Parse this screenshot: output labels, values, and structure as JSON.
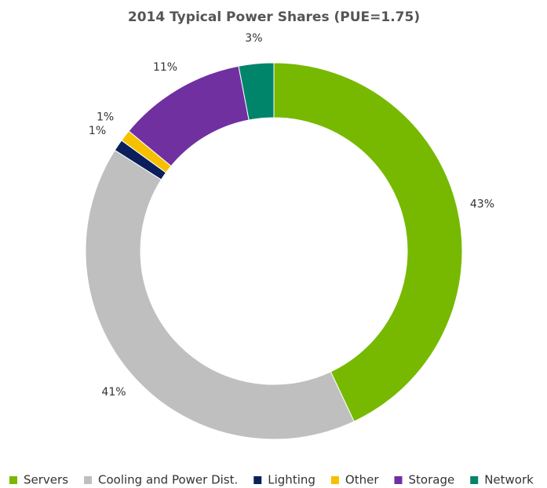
{
  "chart_data": {
    "type": "donut",
    "title": "2014 Typical Power Shares (PUE=1.75)",
    "categories": [
      "Servers",
      "Cooling and Power Dist.",
      "Lighting",
      "Other",
      "Storage",
      "Network"
    ],
    "values": [
      43,
      41,
      1,
      1,
      11,
      3
    ],
    "value_labels": [
      "43%",
      "41%",
      "1%",
      "1%",
      "11%",
      "3%"
    ],
    "colors": [
      "#76b900",
      "#bfbfbf",
      "#0b1f5c",
      "#f5c000",
      "#7030a0",
      "#00856a"
    ],
    "legend": "bottom"
  }
}
